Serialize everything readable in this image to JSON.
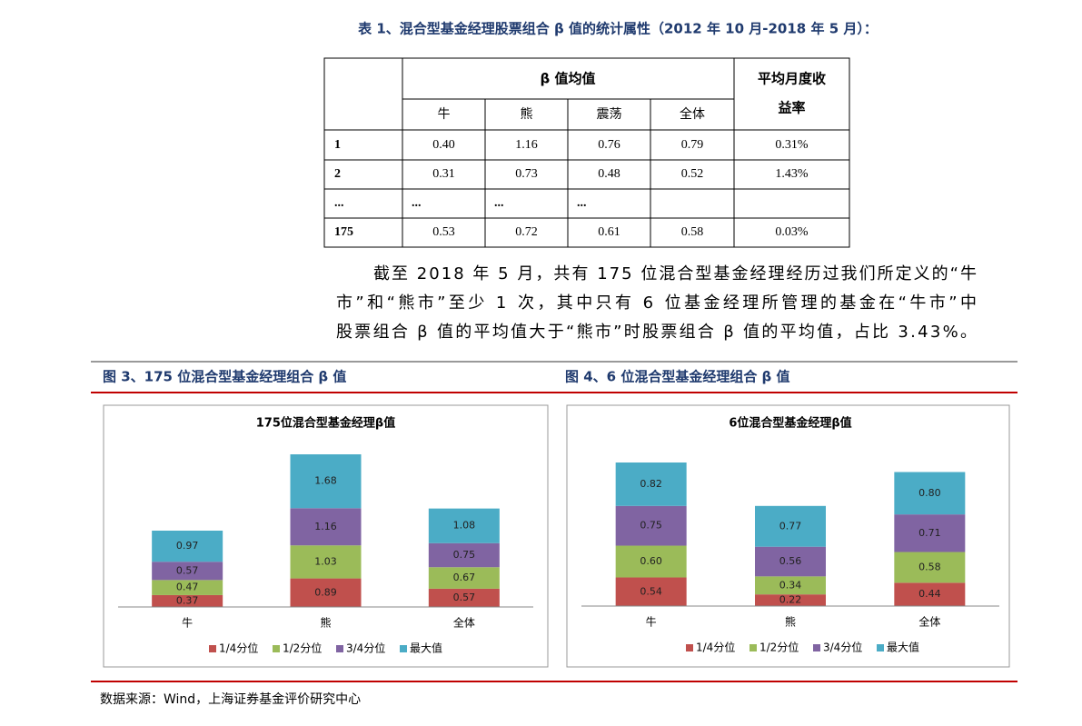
{
  "table_caption": "表 1、混合型基金经理股票组合 β 值的统计属性（2012 年 10 月-2018 年 5 月）：",
  "table": {
    "group_header": "β 值均值",
    "last_header": [
      "平均月度收",
      "益率"
    ],
    "sub_headers": [
      "牛",
      "熊",
      "震荡",
      "全体"
    ],
    "rows": [
      [
        "1",
        "0.40",
        "1.16",
        "0.76",
        "0.79",
        "0.31%"
      ],
      [
        "2",
        "0.31",
        "0.73",
        "0.48",
        "0.52",
        "1.43%"
      ],
      [
        "...",
        "...",
        "...",
        "..."
      ],
      [
        "175",
        "0.53",
        "0.72",
        "0.61",
        "0.58",
        "0.03%"
      ]
    ]
  },
  "paragraph": [
    "截至 2018 年 5 月，共有 175 位混合型基金经理经历过我们所定义的“牛",
    "市”和“熊市”至少 1 次，其中只有 6 位基金经理所管理的基金在“牛市”中",
    "股票组合 β 值的平均值大于“熊市”时股票组合 β 值的平均值，占比 3.43%。"
  ],
  "figure_captions": [
    "图 3、175 位混合型基金经理组合 β 值",
    "图 4、6 位混合型基金经理组合 β 值"
  ],
  "source": "数据来源：Wind，上海证券基金评价研究中心",
  "chart_data": [
    {
      "type": "stacked_bar",
      "title": "175位混合型基金经理β值",
      "categories": [
        "牛",
        "熊",
        "全体"
      ],
      "series": [
        {
          "name": "1/4分位",
          "color": "#c0504d",
          "values": [
            0.37,
            0.89,
            0.57
          ],
          "value_labels": [
            "0.37",
            "0.89",
            "0.57"
          ]
        },
        {
          "name": "1/2分位",
          "color": "#9bbb59",
          "values": [
            0.47,
            1.03,
            0.67
          ],
          "value_labels": [
            "0.47",
            "1.03",
            "0.67"
          ]
        },
        {
          "name": "3/4分位",
          "color": "#8064a2",
          "values": [
            0.57,
            1.16,
            0.75
          ],
          "value_labels": [
            "0.57",
            "1.16",
            "0.75"
          ]
        },
        {
          "name": "最大值",
          "color": "#4bacc6",
          "values": [
            0.97,
            1.68,
            1.08
          ],
          "value_labels": [
            "0.97",
            "1.68",
            "1.08"
          ]
        }
      ]
    },
    {
      "type": "stacked_bar",
      "title": "6位混合型基金经理β值",
      "categories": [
        "牛",
        "熊",
        "全体"
      ],
      "series": [
        {
          "name": "1/4分位",
          "color": "#c0504d",
          "values": [
            0.54,
            0.22,
            0.44
          ],
          "value_labels": [
            "0.54",
            "0.22",
            "0.44"
          ]
        },
        {
          "name": "1/2分位",
          "color": "#9bbb59",
          "values": [
            0.6,
            0.34,
            0.58
          ],
          "value_labels": [
            "0.60",
            "0.34",
            "0.58"
          ]
        },
        {
          "name": "3/4分位",
          "color": "#8064a2",
          "values": [
            0.75,
            0.56,
            0.71
          ],
          "value_labels": [
            "0.75",
            "0.56",
            "0.71"
          ]
        },
        {
          "name": "最大值",
          "color": "#4bacc6",
          "values": [
            0.82,
            0.77,
            0.8
          ],
          "value_labels": [
            "0.82",
            "0.77",
            "0.80"
          ]
        }
      ]
    }
  ]
}
